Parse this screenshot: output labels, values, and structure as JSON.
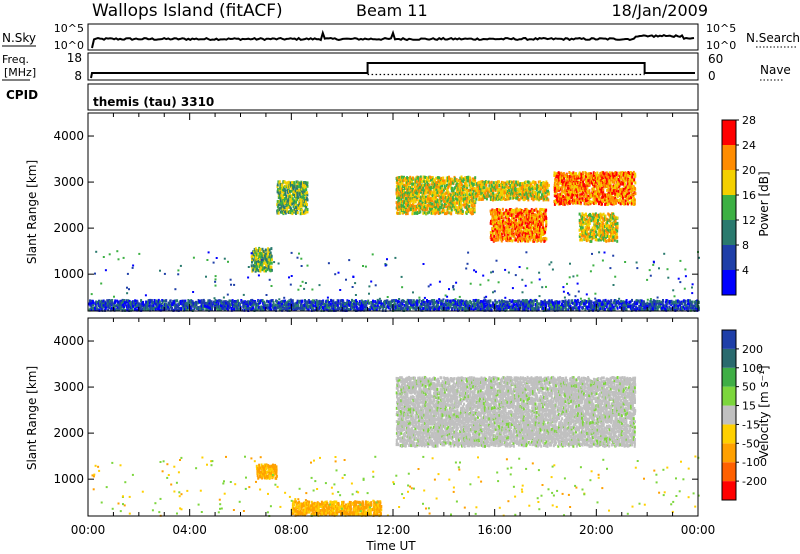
{
  "header": {
    "station": "Wallops Island (fitACF)",
    "beam": "Beam 11",
    "date": "18/Jan/2009"
  },
  "top_panels": {
    "nsky": {
      "label": "N.Sky",
      "ticks": [
        "10^5",
        "10^0"
      ]
    },
    "nsearch": {
      "label": "N.Search",
      "ticks": [
        "10^5",
        "10^0"
      ]
    },
    "freq": {
      "label_line1": "Freq.",
      "label_line2": "[MHz]",
      "ticks": [
        "18",
        "8"
      ]
    },
    "nave": {
      "label": "Nave",
      "ticks": [
        "60",
        "0"
      ]
    },
    "cpid": {
      "label": "CPID",
      "value": "themis (tau) 3310"
    }
  },
  "chart_data": [
    {
      "type": "heatmap",
      "name": "power",
      "ylabel": "Slant Range [km]",
      "yticks": [
        "1000",
        "2000",
        "3000",
        "4000"
      ],
      "ylim": [
        200,
        4500
      ],
      "xlim": [
        0,
        24
      ],
      "colorbar": {
        "label": "Power [dB]",
        "ticks": [
          "4",
          "8",
          "12",
          "16",
          "20",
          "24",
          "28"
        ],
        "colors": [
          "#0000ff",
          "#1f3fa8",
          "#2a7a6e",
          "#3cb043",
          "#f4d000",
          "#ff8c00",
          "#ff0000"
        ]
      },
      "echo_regions": [
        {
          "t0": 6.4,
          "t1": 7.2,
          "r0": 1050,
          "r1": 1550,
          "level": 3
        },
        {
          "t0": 7.4,
          "t1": 8.6,
          "r0": 2300,
          "r1": 3000,
          "level": 3
        },
        {
          "t0": 12.1,
          "t1": 15.2,
          "r0": 2300,
          "r1": 3100,
          "level": 4
        },
        {
          "t0": 15.2,
          "t1": 18.1,
          "r0": 2600,
          "r1": 3000,
          "level": 4
        },
        {
          "t0": 15.8,
          "t1": 18.0,
          "r0": 1700,
          "r1": 2400,
          "level": 5
        },
        {
          "t0": 18.3,
          "t1": 21.5,
          "r0": 2500,
          "r1": 3200,
          "level": 5
        },
        {
          "t0": 19.3,
          "t1": 20.8,
          "r0": 1700,
          "r1": 2300,
          "level": 4
        },
        {
          "t0": 0.0,
          "t1": 24.0,
          "r0": 200,
          "r1": 420,
          "level": 1
        }
      ]
    },
    {
      "type": "heatmap",
      "name": "velocity",
      "xlabel": "Time UT",
      "xticks": [
        "00:00",
        "04:00",
        "08:00",
        "12:00",
        "16:00",
        "20:00",
        "00:00"
      ],
      "ylabel": "Slant Range [km]",
      "yticks": [
        "1000",
        "2000",
        "3000",
        "4000"
      ],
      "ylim": [
        200,
        4500
      ],
      "xlim": [
        0,
        24
      ],
      "colorbar": {
        "label": "Velocity [m s⁻¹]",
        "ticks": [
          "-200",
          "-100",
          "-50",
          "-15",
          "15",
          "50",
          "100",
          "200"
        ],
        "colors": [
          "#ff0000",
          "#ff6000",
          "#ffa000",
          "#ffd000",
          "#c0c0c0",
          "#7cd63c",
          "#3fae45",
          "#2a6a6e",
          "#1f3fa8"
        ]
      },
      "echo_regions": [
        {
          "t0": 6.6,
          "t1": 7.4,
          "r0": 1000,
          "r1": 1300,
          "level": "orange"
        },
        {
          "t0": 8.0,
          "t1": 11.5,
          "r0": 200,
          "r1": 500,
          "level": "orange"
        },
        {
          "t0": 12.1,
          "t1": 21.5,
          "r0": 1700,
          "r1": 3200,
          "level": "grey"
        }
      ]
    }
  ]
}
